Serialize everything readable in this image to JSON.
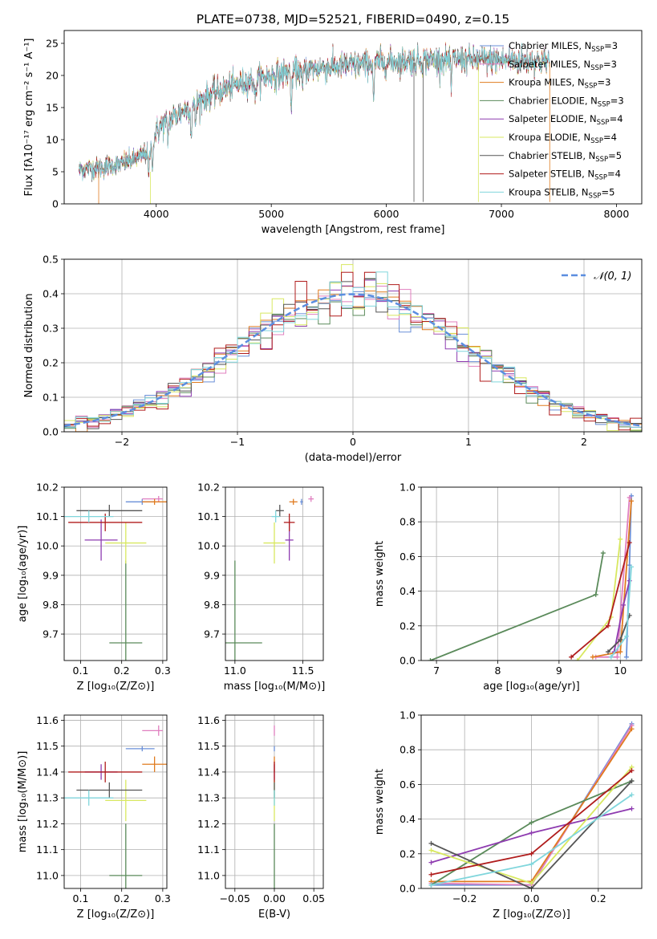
{
  "figure": {
    "title": "PLATE=0738, MJD=52521, FIBERID=0490, z=0.15"
  },
  "colors": {
    "Chabrier MILES": "#6a8fd8",
    "Salpeter MILES": "#e07fbf",
    "Kroupa MILES": "#e07b1f",
    "Chabrier ELODIE": "#5a8a5a",
    "Salpeter ELODIE": "#8e3bb0",
    "Kroupa ELODIE": "#d8e860",
    "Chabrier STELIB": "#555555",
    "Salpeter STELIB": "#b01c1c",
    "Kroupa STELIB": "#80d6dc",
    "normal_curve": "#5b8ee0"
  },
  "chart_data": [
    {
      "id": "spectrum",
      "type": "line",
      "xlabel": "wavelength [Angstrom, rest frame]",
      "ylabel": "Flux [fλ10⁻¹⁷ erg cm⁻² s⁻¹ A⁻¹]",
      "xlim": [
        3200,
        8220
      ],
      "ylim": [
        0,
        27
      ],
      "xticks": [
        4000,
        5000,
        6000,
        7000,
        8000
      ],
      "yticks": [
        0,
        5,
        10,
        15,
        20,
        25
      ],
      "grid": false,
      "legend_position": "top-right",
      "legend": [
        {
          "model": "Chabrier MILES",
          "nssp": 3
        },
        {
          "model": "Salpeter MILES",
          "nssp": 3
        },
        {
          "model": "Kroupa MILES",
          "nssp": 3
        },
        {
          "model": "Chabrier ELODIE",
          "nssp": 3
        },
        {
          "model": "Salpeter ELODIE",
          "nssp": 4
        },
        {
          "model": "Kroupa ELODIE",
          "nssp": 4
        },
        {
          "model": "Chabrier STELIB",
          "nssp": 5
        },
        {
          "model": "Salpeter STELIB",
          "nssp": 4
        },
        {
          "model": "Kroupa STELIB",
          "nssp": 5
        }
      ],
      "continuum": [
        [
          3330,
          5.4
        ],
        [
          3500,
          5.6
        ],
        [
          3700,
          6.2
        ],
        [
          3850,
          7.2
        ],
        [
          3950,
          8.5
        ],
        [
          4000,
          11.2
        ],
        [
          4100,
          13.0
        ],
        [
          4300,
          15.2
        ],
        [
          4500,
          17.2
        ],
        [
          4700,
          18.6
        ],
        [
          4900,
          19.6
        ],
        [
          5100,
          20.3
        ],
        [
          5300,
          20.9
        ],
        [
          5500,
          21.3
        ],
        [
          5700,
          21.6
        ],
        [
          6000,
          22.1
        ],
        [
          6300,
          22.4
        ],
        [
          6600,
          22.5
        ],
        [
          6900,
          22.4
        ],
        [
          7200,
          22.3
        ],
        [
          7420,
          22.2
        ]
      ],
      "absorption_features": [
        [
          3934,
          4.0
        ],
        [
          3969,
          3.0
        ],
        [
          4102,
          3.0
        ],
        [
          4304,
          4.5
        ],
        [
          4341,
          3.0
        ],
        [
          4861,
          3.5
        ],
        [
          5175,
          5.5
        ],
        [
          5270,
          3.0
        ],
        [
          5890,
          5.5
        ],
        [
          6563,
          4.5
        ]
      ],
      "spikes": [
        [
          6240,
          0.3
        ],
        [
          6320,
          0.3
        ],
        [
          6800,
          0.3
        ],
        [
          7420,
          0.3
        ]
      ]
    },
    {
      "id": "residuals",
      "type": "histogram",
      "xlabel": "(data-model)/error",
      "ylabel": "Normed distribution",
      "xlim": [
        -2.5,
        2.5
      ],
      "ylim": [
        0,
        0.5
      ],
      "xticks": [
        -2,
        -1,
        0,
        1,
        2
      ],
      "yticks": [
        0.0,
        0.1,
        0.2,
        0.3,
        0.4,
        0.5
      ],
      "grid": true,
      "legend_position": "top-right",
      "legend": "𝒩(0, 1)",
      "bins": [
        -2.5,
        2.5,
        50
      ]
    },
    {
      "id": "age-vs-Z",
      "type": "errorbar",
      "xlabel": "Z [log₁₀(Z/Z⊙)]",
      "ylabel": "age  [log₁₀(age/yr)]",
      "xlim": [
        0.06,
        0.31
      ],
      "ylim": [
        9.61,
        10.2
      ],
      "xticks": [
        0.1,
        0.2,
        0.3
      ],
      "yticks": [
        9.7,
        9.8,
        9.9,
        10.0,
        10.1,
        10.2
      ],
      "grid": true
    },
    {
      "id": "age-vs-mass",
      "type": "errorbar",
      "xlabel": "mass [log₁₀(M/M⊙)]",
      "ylabel": "",
      "xlim": [
        10.93,
        11.65
      ],
      "ylim": [
        9.61,
        10.2
      ],
      "xticks": [
        11.0,
        11.5
      ],
      "yticks": [
        9.7,
        9.8,
        9.9,
        10.0,
        10.1,
        10.2
      ],
      "grid": true
    },
    {
      "id": "weight-vs-age",
      "type": "line",
      "xlabel": "age  [log₁₀(age/yr)]",
      "ylabel": "mass weight",
      "xlim": [
        6.75,
        10.35
      ],
      "ylim": [
        0,
        1.0
      ],
      "xticks": [
        7,
        8,
        9,
        10
      ],
      "yticks": [
        0.0,
        0.2,
        0.4,
        0.6,
        0.8,
        1.0
      ],
      "grid": true
    },
    {
      "id": "mass-vs-Z",
      "type": "errorbar",
      "xlabel": "Z [log₁₀(Z/Z⊙)]",
      "ylabel": "mass [log₁₀(M/M⊙)]",
      "xlim": [
        0.06,
        0.31
      ],
      "ylim": [
        10.95,
        11.62
      ],
      "xticks": [
        0.1,
        0.2,
        0.3
      ],
      "yticks": [
        11.0,
        11.1,
        11.2,
        11.3,
        11.4,
        11.5,
        11.6
      ],
      "grid": true
    },
    {
      "id": "mass-vs-EBV",
      "type": "errorbar",
      "xlabel": "E(B-V)",
      "ylabel": "",
      "xlim": [
        -0.062,
        0.062
      ],
      "ylim": [
        10.95,
        11.62
      ],
      "xticks": [
        -0.05,
        0.0,
        0.05
      ],
      "yticks": [
        11.0,
        11.1,
        11.2,
        11.3,
        11.4,
        11.5,
        11.6
      ],
      "grid": true
    },
    {
      "id": "weight-vs-Z",
      "type": "line",
      "xlabel": "Z [log₁₀(Z/Z⊙)]",
      "ylabel": "mass weight",
      "xlim": [
        -0.33,
        0.33
      ],
      "ylim": [
        0,
        1.0
      ],
      "xticks": [
        -0.2,
        0.0,
        0.2
      ],
      "yticks": [
        0.0,
        0.2,
        0.4,
        0.6,
        0.8,
        1.0
      ],
      "grid": true
    }
  ],
  "fits": [
    {
      "model": "Chabrier MILES",
      "Z": [
        0.25,
        0.3
      ],
      "age": [
        10.15,
        10.18
      ],
      "mass": [
        11.49,
        11.51
      ],
      "ebv": [
        0.0,
        0.0
      ],
      "zerr": [
        0.04,
        0.03
      ],
      "ageerr": [
        0.01,
        0.01
      ],
      "masserr": [
        0.01,
        0.01
      ],
      "ebverr": [
        0.0,
        0.0
      ],
      "wages": [
        [
          10.1,
          0.02
        ],
        [
          10.15,
          0.55
        ],
        [
          10.18,
          0.95
        ]
      ],
      "wZ": [
        [
          -0.3,
          0.02
        ],
        [
          0.0,
          0.02
        ],
        [
          0.3,
          0.95
        ]
      ]
    },
    {
      "model": "Salpeter MILES",
      "Z": [
        0.29,
        0.29
      ],
      "age": [
        10.16,
        10.16
      ],
      "mass": [
        11.56,
        11.56
      ],
      "ebv": [
        0.0,
        0.0
      ],
      "zerr": [
        0.04,
        0.01
      ],
      "ageerr": [
        0.01,
        0.01
      ],
      "masserr": [
        0.02,
        0.02
      ],
      "ebverr": [
        0.0,
        0.0
      ],
      "wages": [
        [
          9.6,
          0.02
        ],
        [
          9.95,
          0.02
        ],
        [
          10.15,
          0.94
        ]
      ],
      "wZ": [
        [
          -0.3,
          0.03
        ],
        [
          0.0,
          0.02
        ],
        [
          0.3,
          0.94
        ]
      ]
    },
    {
      "model": "Kroupa MILES",
      "Z": [
        0.28,
        0.28
      ],
      "age": [
        10.15,
        10.15
      ],
      "mass": [
        11.43,
        11.43
      ],
      "ebv": [
        0.0,
        0.0
      ],
      "zerr": [
        0.03,
        0.03
      ],
      "ageerr": [
        0.01,
        0.01
      ],
      "masserr": [
        0.03,
        0.03
      ],
      "ebverr": [
        0.0,
        0.0
      ],
      "wages": [
        [
          9.55,
          0.02
        ],
        [
          10.0,
          0.05
        ],
        [
          10.18,
          0.92
        ]
      ],
      "wZ": [
        [
          -0.3,
          0.04
        ],
        [
          0.0,
          0.04
        ],
        [
          0.3,
          0.92
        ]
      ]
    },
    {
      "model": "Chabrier ELODIE",
      "Z": [
        0.21,
        0.21
      ],
      "age": [
        9.67,
        9.67
      ],
      "mass": [
        11.0,
        11.0
      ],
      "ebv": [
        0.0,
        0.0
      ],
      "zerr": [
        0.04,
        0.04
      ],
      "ageerr": [
        0.28,
        0.28
      ],
      "masserr": [
        0.2,
        0.2
      ],
      "ebverr": [
        0.0,
        0.0
      ],
      "wages": [
        [
          6.9,
          0.0
        ],
        [
          9.6,
          0.38
        ],
        [
          9.72,
          0.62
        ]
      ],
      "wZ": [
        [
          -0.3,
          0.02
        ],
        [
          0.0,
          0.38
        ],
        [
          0.3,
          0.62
        ]
      ]
    },
    {
      "model": "Salpeter ELODIE",
      "Z": [
        0.15,
        0.15
      ],
      "age": [
        10.02,
        10.02
      ],
      "mass": [
        11.4,
        11.4
      ],
      "ebv": [
        0.0,
        0.0
      ],
      "zerr": [
        0.04,
        0.04
      ],
      "ageerr": [
        0.07,
        0.07
      ],
      "masserr": [
        0.03,
        0.03
      ],
      "ebverr": [
        0.0,
        0.0
      ],
      "wages": [
        [
          9.9,
          0.05
        ],
        [
          10.05,
          0.32
        ],
        [
          10.15,
          0.46
        ]
      ],
      "wZ": [
        [
          -0.3,
          0.15
        ],
        [
          0.0,
          0.32
        ],
        [
          0.3,
          0.46
        ]
      ]
    },
    {
      "model": "Kroupa ELODIE",
      "Z": [
        0.21,
        0.21
      ],
      "age": [
        10.01,
        10.01
      ],
      "mass": [
        11.29,
        11.29
      ],
      "ebv": [
        0.0,
        0.0
      ],
      "zerr": [
        0.05,
        0.05
      ],
      "ageerr": [
        0.07,
        0.07
      ],
      "masserr": [
        0.08,
        0.08
      ],
      "ebverr": [
        0.0,
        0.0
      ],
      "wages": [
        [
          9.3,
          0.0
        ],
        [
          9.85,
          0.25
        ],
        [
          10.0,
          0.7
        ]
      ],
      "wZ": [
        [
          -0.3,
          0.22
        ],
        [
          0.0,
          0.03
        ],
        [
          0.3,
          0.7
        ]
      ]
    },
    {
      "model": "Chabrier STELIB",
      "Z": [
        0.17,
        0.17
      ],
      "age": [
        10.12,
        10.12
      ],
      "mass": [
        11.33,
        11.33
      ],
      "ebv": [
        0.0,
        0.0
      ],
      "zerr": [
        0.08,
        0.08
      ],
      "ageerr": [
        0.02,
        0.02
      ],
      "masserr": [
        0.03,
        0.03
      ],
      "ebverr": [
        0.0,
        0.0
      ],
      "wages": [
        [
          9.8,
          0.05
        ],
        [
          10.0,
          0.12
        ],
        [
          10.15,
          0.26
        ]
      ],
      "wZ": [
        [
          -0.3,
          0.26
        ],
        [
          0.0,
          0.0
        ],
        [
          0.3,
          0.62
        ]
      ]
    },
    {
      "model": "Salpeter STELIB",
      "Z": [
        0.16,
        0.16
      ],
      "age": [
        10.08,
        10.08
      ],
      "mass": [
        11.4,
        11.4
      ],
      "ebv": [
        0.0,
        0.0
      ],
      "zerr": [
        0.09,
        0.09
      ],
      "ageerr": [
        0.03,
        0.03
      ],
      "masserr": [
        0.04,
        0.04
      ],
      "ebverr": [
        0.0,
        0.0
      ],
      "wages": [
        [
          9.2,
          0.02
        ],
        [
          9.8,
          0.2
        ],
        [
          10.15,
          0.68
        ]
      ],
      "wZ": [
        [
          -0.3,
          0.08
        ],
        [
          0.0,
          0.2
        ],
        [
          0.3,
          0.68
        ]
      ]
    },
    {
      "model": "Kroupa STELIB",
      "Z": [
        0.12,
        0.12
      ],
      "age": [
        10.1,
        10.1
      ],
      "mass": [
        11.3,
        11.3
      ],
      "ebv": [
        0.0,
        0.0
      ],
      "zerr": [
        0.06,
        0.06
      ],
      "ageerr": [
        0.02,
        0.02
      ],
      "masserr": [
        0.03,
        0.03
      ],
      "ebverr": [
        0.0,
        0.0
      ],
      "wages": [
        [
          9.85,
          0.02
        ],
        [
          10.1,
          0.14
        ],
        [
          10.18,
          0.54
        ]
      ],
      "wZ": [
        [
          -0.3,
          0.02
        ],
        [
          0.0,
          0.14
        ],
        [
          0.3,
          0.54
        ]
      ]
    }
  ]
}
